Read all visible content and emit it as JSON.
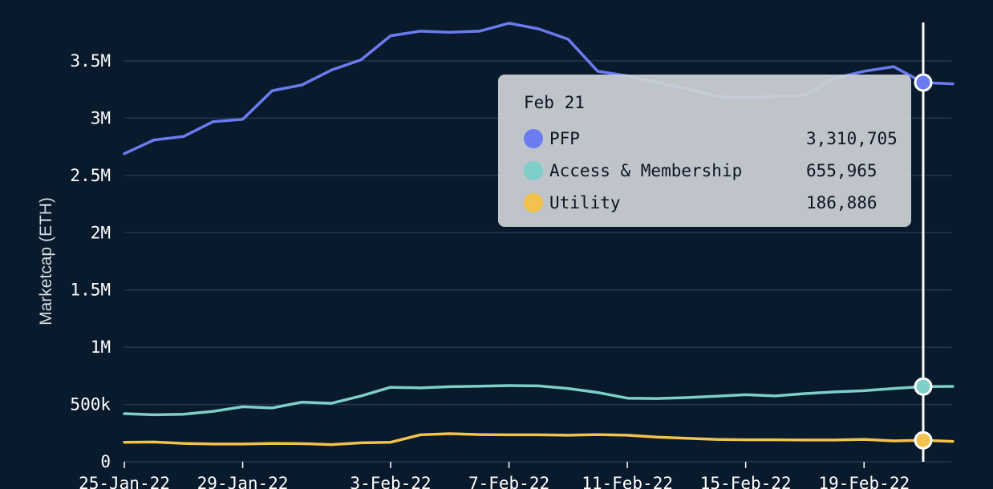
{
  "chart_data": {
    "type": "line",
    "title": "",
    "xlabel": "",
    "ylabel": "Marketcap (ETH)",
    "ylim": [
      0,
      3900000
    ],
    "grid": true,
    "yticks": [
      {
        "value": 0,
        "label": "0"
      },
      {
        "value": 500000,
        "label": "500k"
      },
      {
        "value": 1000000,
        "label": "1M"
      },
      {
        "value": 1500000,
        "label": "1.5M"
      },
      {
        "value": 2000000,
        "label": "2M"
      },
      {
        "value": 2500000,
        "label": "2.5M"
      },
      {
        "value": 3000000,
        "label": "3M"
      },
      {
        "value": 3500000,
        "label": "3.5M"
      }
    ],
    "x": [
      "2022-01-25",
      "2022-01-26",
      "2022-01-27",
      "2022-01-28",
      "2022-01-29",
      "2022-01-30",
      "2022-01-31",
      "2022-02-01",
      "2022-02-02",
      "2022-02-03",
      "2022-02-04",
      "2022-02-05",
      "2022-02-06",
      "2022-02-07",
      "2022-02-08",
      "2022-02-09",
      "2022-02-10",
      "2022-02-11",
      "2022-02-12",
      "2022-02-13",
      "2022-02-14",
      "2022-02-15",
      "2022-02-16",
      "2022-02-17",
      "2022-02-18",
      "2022-02-19",
      "2022-02-20",
      "2022-02-21",
      "2022-02-22"
    ],
    "xticks": [
      {
        "x": "2022-01-25",
        "label": "25-Jan-22"
      },
      {
        "x": "2022-01-29",
        "label": "29-Jan-22"
      },
      {
        "x": "2022-02-03",
        "label": "3-Feb-22"
      },
      {
        "x": "2022-02-07",
        "label": "7-Feb-22"
      },
      {
        "x": "2022-02-11",
        "label": "11-Feb-22"
      },
      {
        "x": "2022-02-15",
        "label": "15-Feb-22"
      },
      {
        "x": "2022-02-19",
        "label": "19-Feb-22"
      }
    ],
    "series": [
      {
        "name": "PFP",
        "color": "#6b7bf0",
        "values": [
          2690000,
          2810000,
          2840000,
          2970000,
          2990000,
          3240000,
          3290000,
          3420000,
          3510000,
          3720000,
          3760000,
          3750000,
          3760000,
          3830000,
          3780000,
          3690000,
          3410000,
          3370000,
          3310000,
          3260000,
          3190000,
          3180000,
          3190000,
          3200000,
          3350000,
          3410000,
          3450000,
          3310705,
          3300000
        ]
      },
      {
        "name": "Access & Membership",
        "color": "#7ecfc9",
        "values": [
          420000,
          410000,
          415000,
          440000,
          480000,
          470000,
          520000,
          510000,
          575000,
          650000,
          645000,
          655000,
          660000,
          665000,
          662000,
          640000,
          605000,
          555000,
          552000,
          560000,
          572000,
          585000,
          575000,
          595000,
          610000,
          620000,
          640000,
          655965,
          658000
        ]
      },
      {
        "name": "Utility",
        "color": "#f2c14e",
        "values": [
          170000,
          172000,
          160000,
          155000,
          155000,
          160000,
          158000,
          150000,
          165000,
          170000,
          235000,
          245000,
          237000,
          235000,
          235000,
          232000,
          237000,
          232000,
          215000,
          205000,
          195000,
          192000,
          192000,
          190000,
          190000,
          195000,
          182000,
          186886,
          178000
        ]
      }
    ]
  },
  "tooltip": {
    "date": "Feb 21",
    "x": "2022-02-21",
    "rows": [
      {
        "name": "PFP",
        "value": "3,310,705",
        "color": "#6b7bf0"
      },
      {
        "name": "Access & Membership",
        "value": "655,965",
        "color": "#7ecfc9"
      },
      {
        "name": "Utility",
        "value": "186,886",
        "color": "#f2c14e"
      }
    ]
  }
}
